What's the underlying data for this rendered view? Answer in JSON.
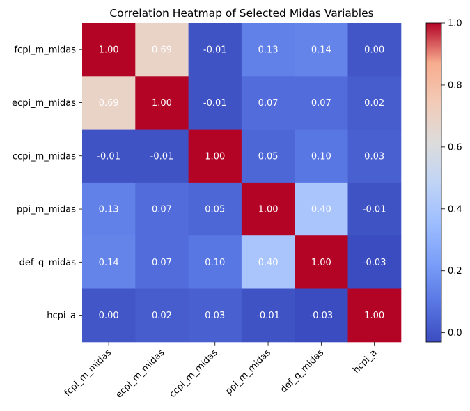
{
  "chart_data": {
    "type": "heatmap",
    "title": "Correlation Heatmap of Selected Midas Variables",
    "xlabel": "",
    "ylabel": "",
    "x_categories": [
      "fcpi_m_midas",
      "ecpi_m_midas",
      "ccpi_m_midas",
      "ppi_m_midas",
      "def_q_midas",
      "hcpi_a"
    ],
    "y_categories": [
      "fcpi_m_midas",
      "ecpi_m_midas",
      "ccpi_m_midas",
      "ppi_m_midas",
      "def_q_midas",
      "hcpi_a"
    ],
    "matrix": [
      [
        1.0,
        0.69,
        -0.01,
        0.13,
        0.14,
        0.0
      ],
      [
        0.69,
        1.0,
        -0.01,
        0.07,
        0.07,
        0.02
      ],
      [
        -0.01,
        -0.01,
        1.0,
        0.05,
        0.1,
        0.03
      ],
      [
        0.13,
        0.07,
        0.05,
        1.0,
        0.4,
        -0.01
      ],
      [
        0.14,
        0.07,
        0.1,
        0.4,
        1.0,
        -0.03
      ],
      [
        0.0,
        0.02,
        0.03,
        -0.01,
        -0.03,
        1.0
      ]
    ],
    "cell_labels": [
      [
        "1.00",
        "0.69",
        "-0.01",
        "0.13",
        "0.14",
        "0.00"
      ],
      [
        "0.69",
        "1.00",
        "-0.01",
        "0.07",
        "0.07",
        "0.02"
      ],
      [
        "-0.01",
        "-0.01",
        "1.00",
        "0.05",
        "0.10",
        "0.03"
      ],
      [
        "0.13",
        "0.07",
        "0.05",
        "1.00",
        "0.40",
        "-0.01"
      ],
      [
        "0.14",
        "0.07",
        "0.10",
        "0.40",
        "1.00",
        "-0.03"
      ],
      [
        "0.00",
        "0.02",
        "0.03",
        "-0.01",
        "-0.03",
        "1.00"
      ]
    ],
    "colormap": "coolwarm",
    "vmin": -0.03,
    "vmax": 1.0,
    "colorbar_ticks": [
      0.0,
      0.2,
      0.4,
      0.6,
      0.8,
      1.0
    ],
    "colorbar_tick_labels": [
      "0.0",
      "0.2",
      "0.4",
      "0.6",
      "0.8",
      "1.0"
    ],
    "colorbar_location": "right",
    "grid": false
  }
}
